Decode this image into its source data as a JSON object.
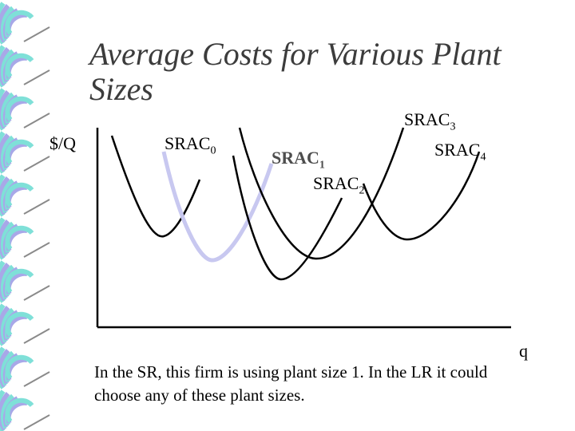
{
  "title": "Average Costs for Various Plant Sizes",
  "y_axis_label": "$/Q",
  "x_axis_label": "q",
  "curves": [
    {
      "name": "SRAC",
      "sub": "0",
      "color": "#000000"
    },
    {
      "name": "SRAC",
      "sub": "1",
      "color": "#c8c8f0"
    },
    {
      "name": "SRAC",
      "sub": "2",
      "color": "#000000"
    },
    {
      "name": "SRAC",
      "sub": "3",
      "color": "#000000"
    },
    {
      "name": "SRAC",
      "sub": "4",
      "color": "#000000"
    }
  ],
  "caption": "In the SR, this firm is using plant size 1. In the LR it could choose any of these plant sizes.",
  "colors": {
    "accent_curve": "#c8c8f0",
    "title": "#3c3c3c",
    "spiral_teal": "#7fe0d8",
    "spiral_lavender": "#a8a8e8"
  },
  "decoration": "spiral-binding"
}
